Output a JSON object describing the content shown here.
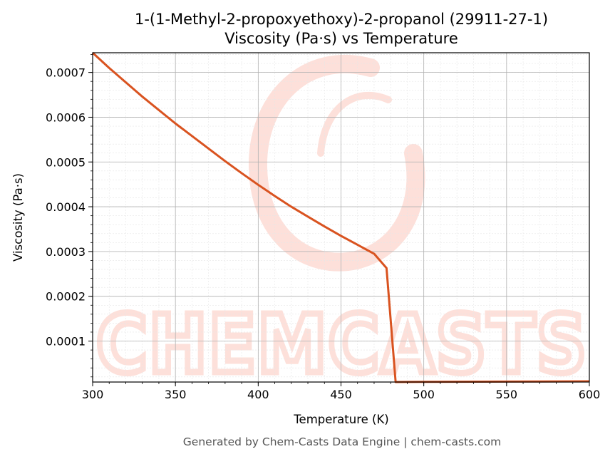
{
  "chart_data": {
    "type": "line",
    "title": "1-(1-Methyl-2-propoxyethoxy)-2-propanol (29911-27-1)",
    "subtitle": "Viscosity (Pa·s) vs Temperature",
    "xlabel": "Temperature (K)",
    "ylabel": "Viscosity (Pa·s)",
    "xlim": [
      300,
      600
    ],
    "ylim": [
      8.5e-06,
      0.000744
    ],
    "x_ticks": [
      300,
      350,
      400,
      450,
      500,
      550,
      600
    ],
    "x_tick_labels": [
      "300",
      "350",
      "400",
      "450",
      "500",
      "550",
      "600"
    ],
    "y_ticks": [
      0.0001,
      0.0002,
      0.0003,
      0.0004,
      0.0005,
      0.0006,
      0.0007
    ],
    "y_tick_labels": [
      "0.0001",
      "0.0002",
      "0.0003",
      "0.0004",
      "0.0005",
      "0.0006",
      "0.0007"
    ],
    "grid": true,
    "series": [
      {
        "color": "#d95320",
        "x": [
          300,
          310,
          320,
          330,
          340,
          350,
          360,
          370,
          380,
          390,
          400,
          410,
          420,
          430,
          440,
          450,
          460,
          470,
          477.5,
          483,
          490,
          500,
          550,
          600
        ],
        "y": [
          0.000744,
          0.00071,
          0.000678,
          0.000646,
          0.000616,
          0.000586,
          0.000558,
          0.00053,
          0.000502,
          0.000475,
          0.000449,
          0.000424,
          0.0004,
          0.000378,
          0.000356,
          0.000335,
          0.000315,
          0.000295,
          0.000263,
          8.5e-06,
          8.7e-06,
          9e-06,
          9.5e-06,
          1e-05
        ]
      }
    ]
  },
  "watermark": {
    "text": "CHEMCASTS",
    "color": "#fde0da"
  },
  "footer": "Generated by Chem-Casts Data Engine | chem-casts.com"
}
